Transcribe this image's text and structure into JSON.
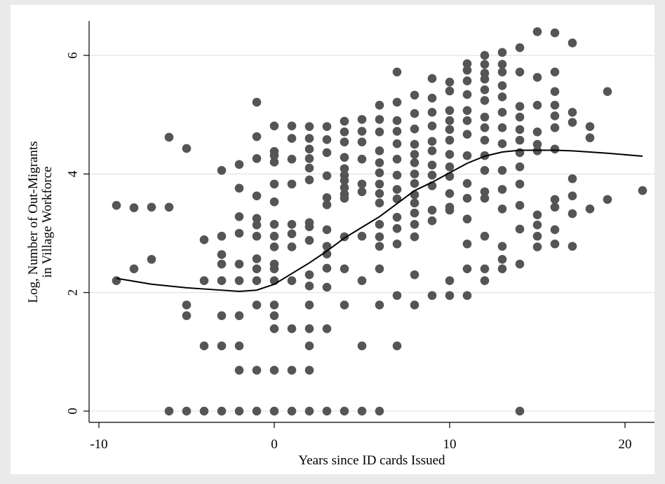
{
  "chart_data": {
    "type": "scatter",
    "xlabel": "Years since ID cards Issued",
    "ylabel": [
      "Log, Number of Out-Migrants",
      "in Village Workforce"
    ],
    "xlim": [
      -10.56,
      21.68
    ],
    "ylim": [
      -0.19,
      6.58
    ],
    "xticks": [
      -10,
      0,
      10,
      20
    ],
    "yticks": [
      0,
      2,
      4,
      6
    ],
    "grid": true,
    "series": [
      {
        "type": "scatter",
        "color": "#555555",
        "x": [
          -9,
          -9,
          -8,
          -8,
          -7,
          -7,
          -6,
          -6,
          -6,
          -5,
          -5,
          -5,
          -5,
          -4,
          -4,
          -4,
          -4,
          -3,
          -3,
          -3,
          -3,
          -3,
          -3,
          -3,
          -3,
          -2,
          -2,
          -2,
          -2,
          -2,
          -2,
          -2,
          -2,
          -2,
          -2,
          -1,
          -1,
          -1,
          -1,
          -1,
          -1,
          -1,
          -1,
          -1,
          -1,
          -1,
          -1,
          -1,
          0,
          0,
          0,
          0,
          0,
          0,
          0,
          0,
          0,
          0,
          0,
          0,
          0,
          0,
          0,
          0,
          0,
          1,
          1,
          1,
          1,
          1,
          1,
          1,
          1,
          1,
          1,
          1,
          2,
          2,
          2,
          2,
          2,
          2,
          2,
          2,
          2,
          2,
          2,
          2,
          2,
          2,
          2,
          2,
          3,
          3,
          3,
          3,
          3,
          3,
          3,
          3,
          3,
          3,
          3,
          3,
          3,
          4,
          4,
          4,
          4,
          4,
          4,
          4,
          4,
          4,
          4,
          4,
          4,
          4,
          4,
          5,
          5,
          5,
          5,
          5,
          5,
          5,
          5,
          5,
          5,
          6,
          6,
          6,
          6,
          6,
          6,
          6,
          6,
          6,
          6,
          6,
          6,
          6,
          6,
          6,
          7,
          7,
          7,
          7,
          7,
          7,
          7,
          7,
          7,
          7,
          7,
          7,
          7,
          7,
          8,
          8,
          8,
          8,
          8,
          8,
          8,
          8,
          8,
          8,
          8,
          8,
          8,
          8,
          8,
          9,
          9,
          9,
          9,
          9,
          9,
          9,
          9,
          9,
          9,
          9,
          9,
          10,
          10,
          10,
          10,
          10,
          10,
          10,
          10,
          10,
          10,
          10,
          10,
          10,
          10,
          11,
          11,
          11,
          11,
          11,
          11,
          11,
          11,
          11,
          11,
          11,
          11,
          11,
          11,
          12,
          12,
          12,
          12,
          12,
          12,
          12,
          12,
          12,
          12,
          12,
          12,
          12,
          12,
          12,
          12,
          13,
          13,
          13,
          13,
          13,
          13,
          13,
          13,
          13,
          13,
          13,
          13,
          13,
          13,
          14,
          14,
          14,
          14,
          14,
          14,
          14,
          14,
          14,
          14,
          14,
          14,
          14,
          15,
          15,
          15,
          15,
          15,
          15,
          15,
          15,
          15,
          15,
          16,
          16,
          16,
          16,
          16,
          16,
          16,
          16,
          16,
          16,
          16,
          17,
          17,
          17,
          17,
          17,
          17,
          17,
          18,
          18,
          18,
          19,
          19,
          21
        ],
        "y": [
          3.47,
          2.2,
          3.43,
          2.4,
          3.44,
          2.56,
          4.62,
          3.44,
          0,
          4.43,
          1.79,
          1.61,
          0,
          2.89,
          2.2,
          1.1,
          0,
          4.06,
          2.95,
          2.64,
          2.48,
          2.2,
          1.61,
          1.1,
          0,
          4.16,
          3.76,
          3.28,
          3.0,
          2.48,
          2.2,
          1.61,
          1.1,
          0.69,
          0,
          5.21,
          4.63,
          4.26,
          3.63,
          3.25,
          3.14,
          2.95,
          2.57,
          2.4,
          2.2,
          1.79,
          0.69,
          0,
          4.81,
          4.38,
          4.31,
          4.2,
          3.83,
          3.53,
          3.15,
          2.95,
          2.77,
          2.48,
          2.4,
          2.2,
          1.79,
          1.61,
          1.39,
          0.69,
          0,
          4.81,
          4.6,
          4.25,
          3.83,
          3.15,
          2.99,
          2.77,
          2.2,
          1.39,
          0.69,
          0,
          4.8,
          4.6,
          4.42,
          4.26,
          4.1,
          3.9,
          3.18,
          3.11,
          2.88,
          2.3,
          2.11,
          1.79,
          1.39,
          1.1,
          0.69,
          0,
          4.8,
          4.58,
          4.36,
          3.97,
          3.6,
          3.48,
          3.06,
          2.78,
          2.65,
          2.41,
          2.09,
          1.39,
          0,
          4.89,
          4.71,
          4.54,
          4.28,
          4.09,
          3.98,
          3.89,
          3.77,
          3.66,
          3.59,
          2.94,
          2.4,
          1.79,
          0,
          4.92,
          4.72,
          4.54,
          4.25,
          3.83,
          3.7,
          2.95,
          2.2,
          1.1,
          0,
          5.16,
          4.92,
          4.71,
          4.39,
          4.19,
          4.02,
          3.83,
          3.67,
          3.51,
          3.15,
          2.94,
          2.78,
          2.4,
          1.79,
          0,
          5.72,
          5.21,
          4.9,
          4.72,
          4.51,
          4.25,
          3.98,
          3.74,
          3.58,
          3.27,
          3.08,
          2.82,
          1.95,
          1.1,
          5.33,
          5.02,
          4.76,
          4.5,
          4.33,
          4.19,
          4.0,
          3.84,
          3.65,
          3.51,
          3.34,
          3.15,
          2.94,
          2.3,
          1.79,
          5.61,
          5.28,
          5.04,
          4.81,
          4.55,
          4.39,
          4.15,
          3.98,
          3.8,
          3.39,
          3.21,
          1.95,
          5.55,
          5.4,
          5.07,
          4.9,
          4.75,
          4.57,
          4.33,
          4.12,
          3.96,
          3.67,
          3.44,
          3.39,
          2.2,
          1.95,
          5.86,
          5.75,
          5.57,
          5.34,
          5.07,
          4.9,
          4.67,
          4.31,
          3.84,
          3.59,
          3.24,
          2.82,
          2.4,
          1.95,
          6.0,
          5.85,
          5.7,
          5.6,
          5.42,
          5.24,
          4.96,
          4.78,
          4.57,
          4.31,
          4.06,
          3.7,
          3.59,
          2.95,
          2.4,
          2.2,
          6.05,
          5.85,
          5.72,
          5.49,
          5.3,
          5.04,
          4.78,
          4.51,
          4.06,
          3.74,
          3.41,
          2.78,
          2.56,
          2.4,
          6.13,
          5.72,
          5.14,
          4.96,
          4.75,
          4.57,
          4.36,
          4.12,
          3.83,
          3.47,
          3.07,
          2.48,
          0,
          6.4,
          5.63,
          5.16,
          4.71,
          4.5,
          4.39,
          3.31,
          3.14,
          2.95,
          2.77,
          6.38,
          5.72,
          5.39,
          5.16,
          4.98,
          4.78,
          4.42,
          3.57,
          3.44,
          3.06,
          2.82,
          6.21,
          5.04,
          4.87,
          3.92,
          3.63,
          3.33,
          2.78,
          4.8,
          4.61,
          3.41,
          5.39,
          3.57,
          3.72
        ]
      },
      {
        "type": "line",
        "color": "#000000",
        "x": [
          -9,
          -7,
          -5,
          -4,
          -2,
          -1,
          0,
          1,
          2,
          3,
          4,
          5,
          6,
          7,
          8,
          9,
          10,
          11,
          12,
          13,
          14,
          15,
          16,
          17,
          19,
          21
        ],
        "y": [
          2.24,
          2.14,
          2.08,
          2.06,
          2.02,
          2.04,
          2.14,
          2.32,
          2.5,
          2.7,
          2.92,
          3.1,
          3.28,
          3.5,
          3.72,
          3.86,
          4.02,
          4.18,
          4.3,
          4.37,
          4.4,
          4.4,
          4.4,
          4.39,
          4.35,
          4.3
        ]
      }
    ]
  }
}
